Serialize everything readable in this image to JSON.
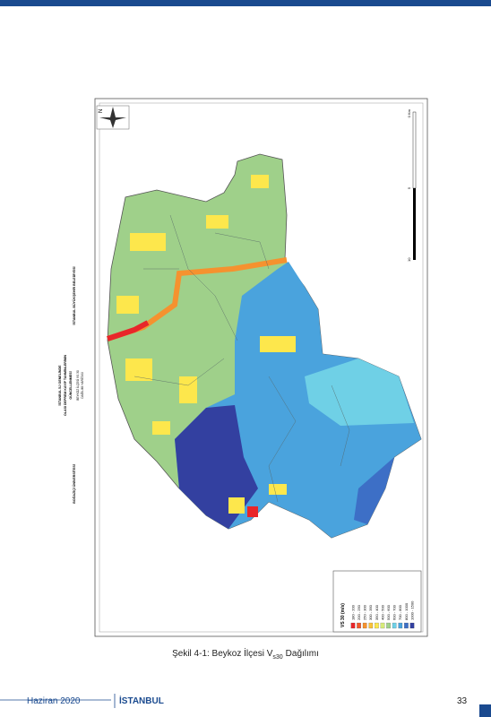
{
  "map": {
    "title_blocks": [
      "İSTANBUL BÜYÜKŞEHİR BELEDİYESİ",
      "İSTANBUL İLİ GENELİNDE",
      "OLASI DEPREM KAYIP TAHMİNLERİNİN",
      "GÜNCELLENMESİ",
      "BEYKOZ İLÇESİ VS 30",
      "DAĞILIMI HARİTASI",
      "BOĞAZİÇİ ÜNİVERSİTESİ"
    ],
    "north": "N",
    "scale_labels": [
      "0 Km",
      "5",
      "10"
    ],
    "legend": {
      "title": "VS 30 (m/s)",
      "items": [
        {
          "label": "180 - 200",
          "color": "#e8262a"
        },
        {
          "label": "200 - 250",
          "color": "#f0592b"
        },
        {
          "label": "250 - 300",
          "color": "#f5922f"
        },
        {
          "label": "300 - 350",
          "color": "#f9c23a"
        },
        {
          "label": "350 - 400",
          "color": "#fde74c"
        },
        {
          "label": "400 - 500",
          "color": "#d6ea7a"
        },
        {
          "label": "500 - 600",
          "color": "#9fd08a"
        },
        {
          "label": "600 - 700",
          "color": "#6fd0e6"
        },
        {
          "label": "700 - 800",
          "color": "#4aa3dd"
        },
        {
          "label": "800 - 1000",
          "color": "#3d6fc6"
        },
        {
          "label": "1000 - 1500",
          "color": "#3340a0"
        }
      ]
    }
  },
  "caption": {
    "prefix": "Şekil 4-1: Beykoz İlçesi V",
    "subscript": "s30",
    "suffix": "Dağılımı"
  },
  "footer": {
    "date": "Haziran 2020",
    "brand": "İSTANBUL",
    "page": "33"
  }
}
